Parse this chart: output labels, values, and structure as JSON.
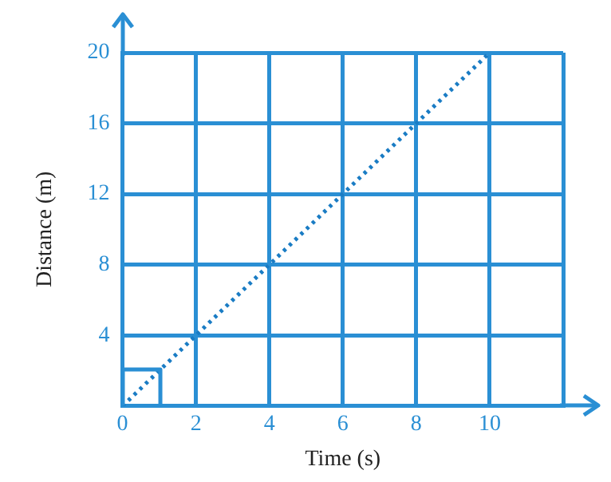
{
  "chart_data": {
    "type": "line",
    "xlabel": "Time (s)",
    "ylabel": "Distance (m)",
    "x": [
      0,
      10
    ],
    "series": [
      {
        "color": "#1a7cc4",
        "values": [
          0,
          20
        ]
      }
    ],
    "xlim": [
      0,
      12
    ],
    "xticks": [
      0,
      2,
      4,
      6,
      8,
      10,
      {
        "value": 12,
        "label": null
      }
    ],
    "ylim": [
      0,
      20
    ],
    "yticks": [
      {
        "value": 0,
        "label": null
      },
      4,
      8,
      12,
      16,
      20
    ],
    "grid": true,
    "legend": false,
    "marker": "none",
    "line_style": "dotted"
  }
}
